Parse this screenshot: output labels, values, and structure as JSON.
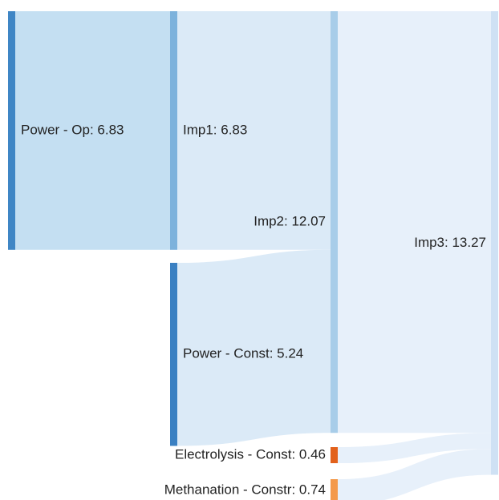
{
  "chart_data": {
    "type": "sankey",
    "nodes": [
      {
        "label": "Power - Op: 6.83",
        "value": 6.83,
        "color": "#3f86c5"
      },
      {
        "label": "Imp1: 6.83",
        "value": 6.83,
        "color": "#7db2dc"
      },
      {
        "label": "Power - Const: 5.24",
        "value": 5.24,
        "color": "#3a80c2"
      },
      {
        "label": "Imp2: 12.07",
        "value": 12.07,
        "color": "#a8cde9"
      },
      {
        "label": "Electrolysis - Const: 0.46",
        "value": 0.46,
        "color": "#e2611b"
      },
      {
        "label": "Methanation - Constr: 0.74",
        "value": 0.74,
        "color": "#f4994a"
      },
      {
        "label": "Imp3: 13.27",
        "value": 13.27,
        "color": "#cfe1f4"
      }
    ],
    "links": [
      {
        "source": 0,
        "target": 1,
        "value": 6.83,
        "color": "#c4dff2"
      },
      {
        "source": 1,
        "target": 3,
        "value": 6.83,
        "color": "#dbeaf7"
      },
      {
        "source": 2,
        "target": 3,
        "value": 5.24,
        "color": "#dbeaf7"
      },
      {
        "source": 3,
        "target": 6,
        "value": 12.07,
        "color": "#e7f0fa"
      },
      {
        "source": 4,
        "target": 6,
        "value": 0.46,
        "color": "#e7f0fa"
      },
      {
        "source": 5,
        "target": 6,
        "value": 0.74,
        "color": "#e7f0fa"
      }
    ]
  }
}
